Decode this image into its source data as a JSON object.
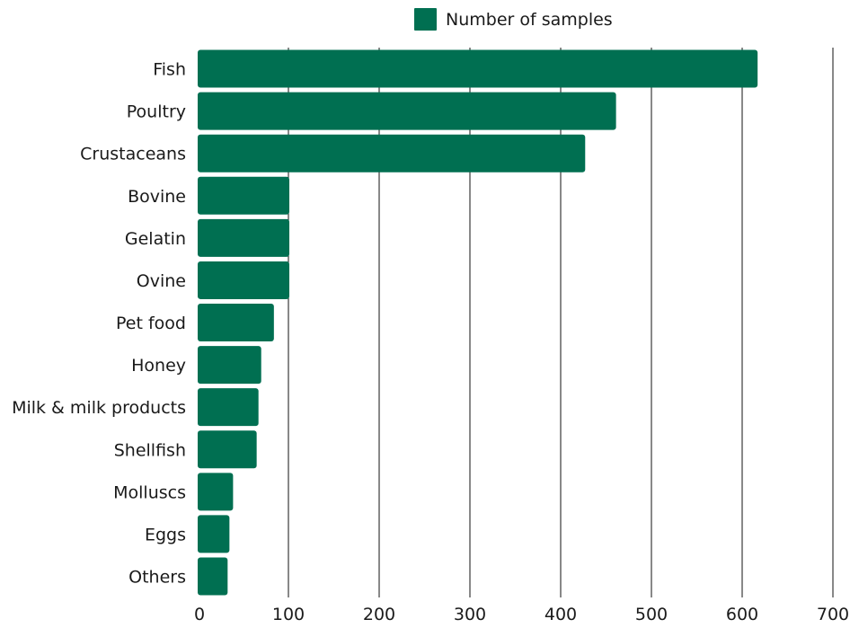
{
  "chart_data": {
    "type": "bar",
    "orientation": "horizontal",
    "categories": [
      "Fish",
      "Poultry",
      "Crustaceans",
      "Bovine",
      "Gelatin",
      "Ovine",
      "Pet food",
      "Honey",
      "Milk & milk products",
      "Shellfish",
      "Molluscs",
      "Eggs",
      "Others"
    ],
    "series": [
      {
        "name": "Number of samples",
        "color": "#006f51",
        "values": [
          617,
          461,
          427,
          101,
          101,
          101,
          84,
          70,
          67,
          65,
          39,
          35,
          33
        ]
      }
    ],
    "xlim": [
      0,
      700
    ],
    "xticks": [
      0,
      100,
      200,
      300,
      400,
      500,
      600,
      700
    ],
    "xtick_labels": [
      "0",
      "100",
      "200",
      "300",
      "400",
      "500",
      "600",
      "700"
    ],
    "grid": "vertical",
    "legend_position": "top"
  }
}
